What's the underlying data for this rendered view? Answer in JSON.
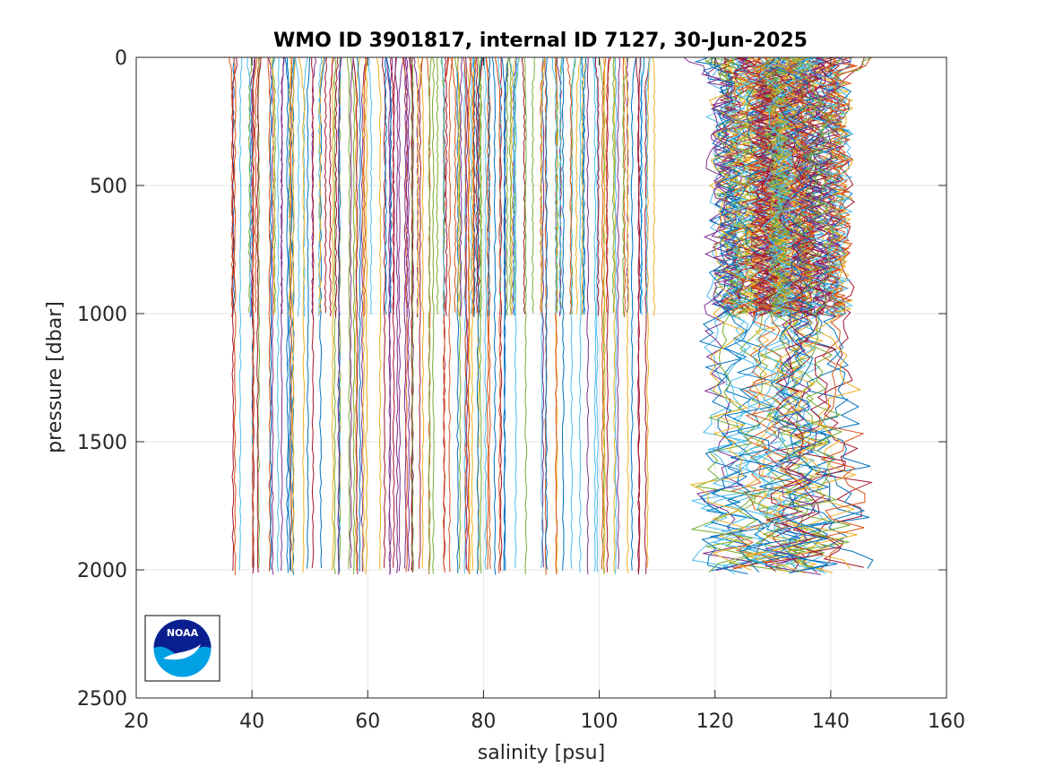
{
  "chart_data": {
    "type": "line",
    "title": "WMO ID 3901817, internal ID 7127, 30-Jun-2025",
    "xlabel": "salinity [psu]",
    "ylabel": "pressure [dbar]",
    "xlim": [
      20,
      160
    ],
    "ylim": [
      0,
      2500
    ],
    "y_reversed": true,
    "grid": true,
    "x_ticks": [
      "20",
      "40",
      "60",
      "80",
      "100",
      "120",
      "140",
      "160"
    ],
    "y_ticks": [
      "0",
      "500",
      "1000",
      "1500",
      "2000",
      "2500"
    ],
    "profile_count": 300,
    "salinity_range_shallow": [
      35,
      142
    ],
    "salinity_range_deep": [
      35.5,
      140
    ],
    "max_pressure_shallow_profiles": 1000,
    "max_pressure_deep_profiles": 2000,
    "series_colors": [
      "#0072bd",
      "#d95319",
      "#edb120",
      "#7e2f8e",
      "#77ac30",
      "#4dbeee",
      "#a2142f"
    ],
    "logo": "noaa-logo"
  }
}
